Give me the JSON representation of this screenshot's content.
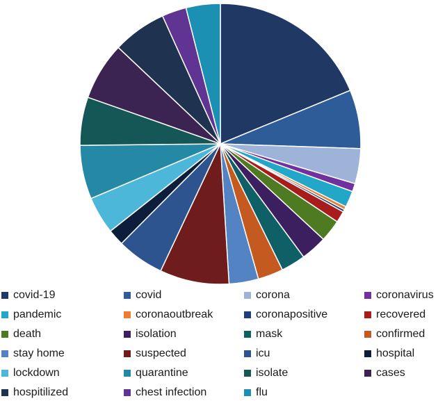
{
  "chart_data": {
    "type": "pie",
    "title": "",
    "legend_position": "bottom",
    "slices": [
      {
        "label": "covid-19",
        "value": 20.0,
        "color": "#1f3864"
      },
      {
        "label": "covid",
        "value": 7.2,
        "color": "#2e5c99"
      },
      {
        "label": "corona",
        "value": 4.3,
        "color": "#9db3d8"
      },
      {
        "label": "coronavirus",
        "value": 1.0,
        "color": "#7030a0"
      },
      {
        "label": "pandemic",
        "value": 2.0,
        "color": "#23a7c9"
      },
      {
        "label": "coronaoutbreak",
        "value": 0.4,
        "color": "#ed7d31"
      },
      {
        "label": "coronapositive",
        "value": 0.3,
        "color": "#1f3d7a"
      },
      {
        "label": "recovered",
        "value": 1.4,
        "color": "#a81c1c"
      },
      {
        "label": "death",
        "value": 2.7,
        "color": "#4e7a22"
      },
      {
        "label": "isolation",
        "value": 3.2,
        "color": "#3b1f5e"
      },
      {
        "label": "mask",
        "value": 3.0,
        "color": "#0f5f66"
      },
      {
        "label": "confirmed",
        "value": 3.1,
        "color": "#c55a20"
      },
      {
        "label": "stay home",
        "value": 3.6,
        "color": "#5483c4"
      },
      {
        "label": "suspected",
        "value": 8.5,
        "color": "#6e1c1c"
      },
      {
        "label": "icu",
        "value": 5.8,
        "color": "#2d548f"
      },
      {
        "label": "hospital",
        "value": 2.0,
        "color": "#0d1e3d"
      },
      {
        "label": "lockdown",
        "value": 4.6,
        "color": "#4cb7d8"
      },
      {
        "label": "quarantine",
        "value": 6.6,
        "color": "#2589a5"
      },
      {
        "label": "isolate",
        "value": 5.9,
        "color": "#155757"
      },
      {
        "label": "cases",
        "value": 7.1,
        "color": "#3b2452"
      },
      {
        "label": "hospitilized",
        "value": 6.6,
        "color": "#1f3350"
      },
      {
        "label": "chest infection",
        "value": 3.0,
        "color": "#5f3492"
      },
      {
        "label": "flu",
        "value": 4.2,
        "color": "#1b90b3"
      }
    ]
  }
}
